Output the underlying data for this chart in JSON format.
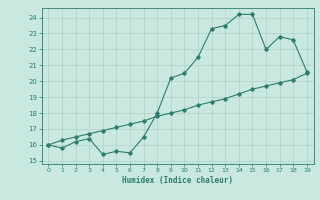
{
  "x": [
    0,
    1,
    2,
    3,
    4,
    5,
    6,
    7,
    8,
    9,
    10,
    11,
    12,
    13,
    14,
    15,
    16,
    17,
    18,
    19
  ],
  "y_curve": [
    16.0,
    15.8,
    16.2,
    16.4,
    15.4,
    15.6,
    15.5,
    16.5,
    18.0,
    20.2,
    20.5,
    21.5,
    23.3,
    23.5,
    24.2,
    24.2,
    22.0,
    22.8,
    22.6,
    20.6
  ],
  "y_linear": [
    16.0,
    16.3,
    16.5,
    16.7,
    16.9,
    17.1,
    17.3,
    17.5,
    17.8,
    18.0,
    18.2,
    18.5,
    18.7,
    18.9,
    19.2,
    19.5,
    19.7,
    19.9,
    20.1,
    20.5
  ],
  "xlim": [
    -0.5,
    19.5
  ],
  "ylim": [
    14.8,
    24.6
  ],
  "yticks": [
    15,
    16,
    17,
    18,
    19,
    20,
    21,
    22,
    23,
    24
  ],
  "xticks": [
    0,
    1,
    2,
    3,
    4,
    5,
    6,
    7,
    8,
    9,
    10,
    11,
    12,
    13,
    14,
    15,
    16,
    17,
    18,
    19
  ],
  "xlabel": "Humidex (Indice chaleur)",
  "line_color": "#2d7d6e",
  "bg_color": "#c8e8e0",
  "grid_color": "#b0d0c8"
}
